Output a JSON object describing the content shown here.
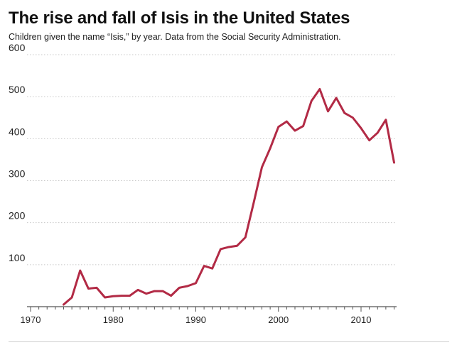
{
  "header": {
    "title": "The rise and fall of Isis in the United States",
    "subtitle": "Children given the name “Isis,” by year. Data from the Social Security Administration."
  },
  "colors": {
    "line": "#b22a45",
    "grid": "#c8c8c8",
    "axis": "#555555"
  },
  "chart_data": {
    "type": "line",
    "title": "The rise and fall of Isis in the United States",
    "subtitle": "Children given the name “Isis,” by year. Data from the Social Security Administration.",
    "xlabel": "",
    "ylabel": "",
    "xlim": [
      1970,
      2014
    ],
    "ylim": [
      0,
      600
    ],
    "yticks": [
      100,
      200,
      300,
      400,
      500,
      600
    ],
    "xticks": [
      1970,
      1980,
      1990,
      2000,
      2010
    ],
    "grid": "horizontal dotted",
    "legend": "none",
    "series": [
      {
        "x": [
          1974,
          1975,
          1976,
          1977,
          1978,
          1979,
          1980,
          1981,
          1982,
          1983,
          1984,
          1985,
          1986,
          1987,
          1988,
          1989,
          1990,
          1991,
          1992,
          1993,
          1994,
          1995,
          1996,
          1997,
          1998,
          1999,
          2000,
          2001,
          2002,
          2003,
          2004,
          2005,
          2006,
          2007,
          2008,
          2009,
          2010,
          2011,
          2012,
          2013,
          2014
        ],
        "values": [
          5,
          22,
          86,
          43,
          45,
          22,
          25,
          26,
          26,
          40,
          31,
          37,
          37,
          26,
          45,
          49,
          56,
          97,
          91,
          137,
          142,
          145,
          165,
          247,
          332,
          377,
          428,
          441,
          419,
          430,
          490,
          518,
          465,
          497,
          461,
          450,
          425,
          396,
          414,
          445,
          343
        ]
      }
    ]
  }
}
